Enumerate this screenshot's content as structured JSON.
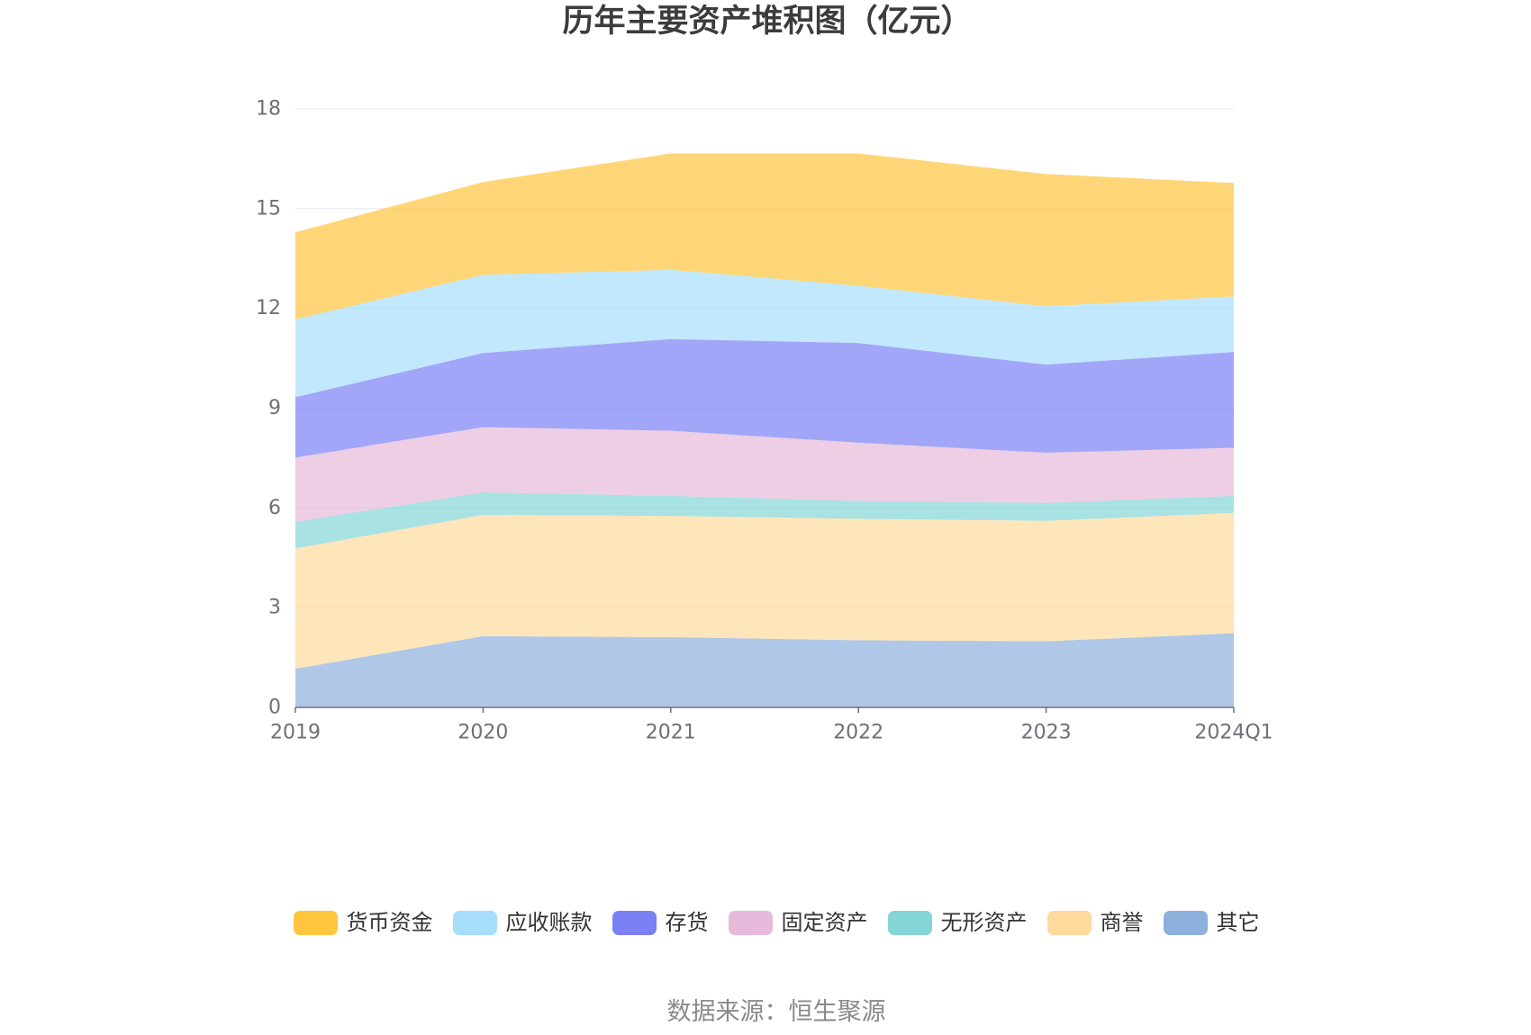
{
  "chart_data": {
    "type": "area",
    "stacked": true,
    "title": "历年主要资产堆积图（亿元）",
    "categories": [
      "2019",
      "2020",
      "2021",
      "2022",
      "2023",
      "2024Q1"
    ],
    "ylim": [
      0,
      18
    ],
    "yticks": [
      0,
      3,
      6,
      9,
      12,
      15,
      18
    ],
    "grid": true,
    "legend_position": "bottom",
    "series": [
      {
        "name": "货币资金",
        "color": "#FFC53D",
        "values": [
          2.62,
          2.79,
          3.5,
          3.98,
          3.98,
          3.41
        ]
      },
      {
        "name": "应收账款",
        "color": "#A6DEFB",
        "values": [
          2.34,
          2.35,
          2.08,
          1.72,
          1.75,
          1.67
        ]
      },
      {
        "name": "存货",
        "color": "#7B80F5",
        "values": [
          1.82,
          2.23,
          2.76,
          3.0,
          2.65,
          2.88
        ]
      },
      {
        "name": "固定资产",
        "color": "#E7B9DA",
        "values": [
          1.93,
          1.96,
          1.96,
          1.75,
          1.51,
          1.45
        ]
      },
      {
        "name": "无形资产",
        "color": "#84D5D6",
        "values": [
          0.8,
          0.68,
          0.6,
          0.54,
          0.54,
          0.51
        ]
      },
      {
        "name": "商誉",
        "color": "#FFDA9C",
        "values": [
          3.62,
          3.65,
          3.65,
          3.65,
          3.62,
          3.62
        ]
      },
      {
        "name": "其它",
        "color": "#8EB0DD",
        "values": [
          1.16,
          2.14,
          2.11,
          2.02,
          1.99,
          2.23
        ]
      }
    ]
  },
  "source": "数据来源：恒生聚源"
}
